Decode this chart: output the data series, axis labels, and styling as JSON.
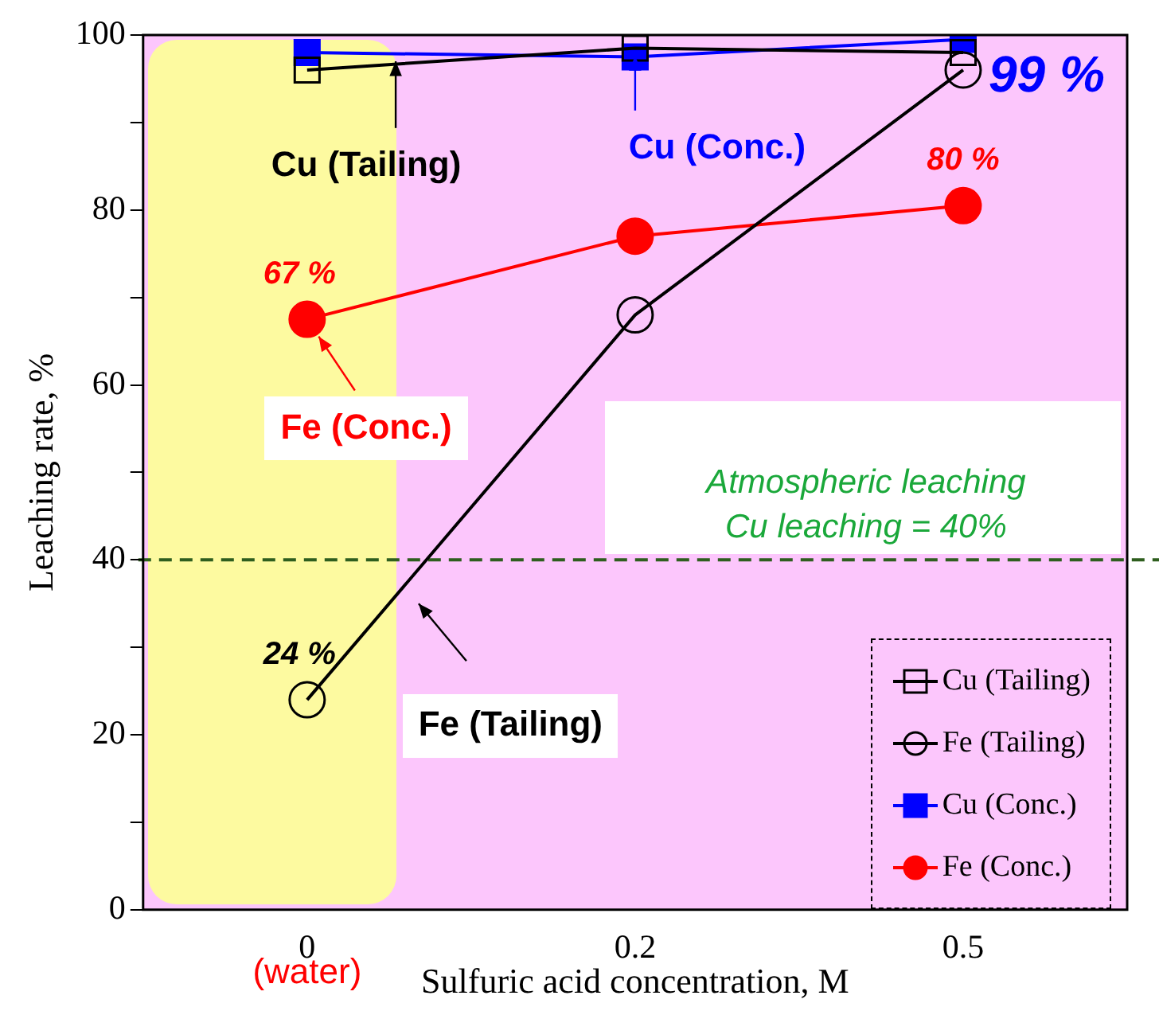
{
  "chart_data": {
    "type": "line",
    "xlabel": "Sulfuric acid concentration, M",
    "ylabel": "Leaching rate, %",
    "categories": [
      "0",
      "0.2",
      "0.5"
    ],
    "series": [
      {
        "name": "Cu (Tailing)",
        "color": "#000000",
        "marker": "square",
        "values": [
          96,
          98.5,
          98
        ]
      },
      {
        "name": "Fe (Tailing)",
        "color": "#000000",
        "marker": "circle",
        "values": [
          24,
          68,
          96
        ],
        "value_labels": [
          "24 %",
          null,
          null
        ]
      },
      {
        "name": "Cu (Conc.)",
        "color": "#0000ff",
        "marker": "square",
        "values": [
          98,
          97.5,
          99.5
        ],
        "value_labels": [
          null,
          null,
          "99 %"
        ]
      },
      {
        "name": "Fe (Conc.)",
        "color": "#ff0000",
        "marker": "circle",
        "values": [
          67.5,
          77,
          80.5
        ],
        "value_labels": [
          "67 %",
          null,
          "80 %"
        ]
      }
    ],
    "ylim": [
      0,
      100
    ],
    "yticks": [
      0,
      {
        "value": 10,
        "label": null
      },
      20,
      {
        "value": 30,
        "label": null
      },
      40,
      {
        "value": 50,
        "label": null
      },
      60,
      {
        "value": 70,
        "label": null
      },
      80,
      {
        "value": 90,
        "label": null
      },
      100
    ],
    "ref_lines": [
      {
        "axis": "y",
        "value": 40,
        "label": "Atmospheric leaching\nCu leaching = 40%",
        "color": "#2e5e1e",
        "line_style": "dashed"
      }
    ],
    "annotations": [
      {
        "text": "Cu (Tailing)",
        "y": 97
      },
      {
        "text": "Cu (Conc.)",
        "y": 97.6
      },
      {
        "text": "Fe (Conc.)",
        "x": "0",
        "y": 67.5
      },
      "Fe (Tailing)",
      "(water)"
    ],
    "legend": "bottom right",
    "grid": false,
    "line_style": "solid"
  }
}
